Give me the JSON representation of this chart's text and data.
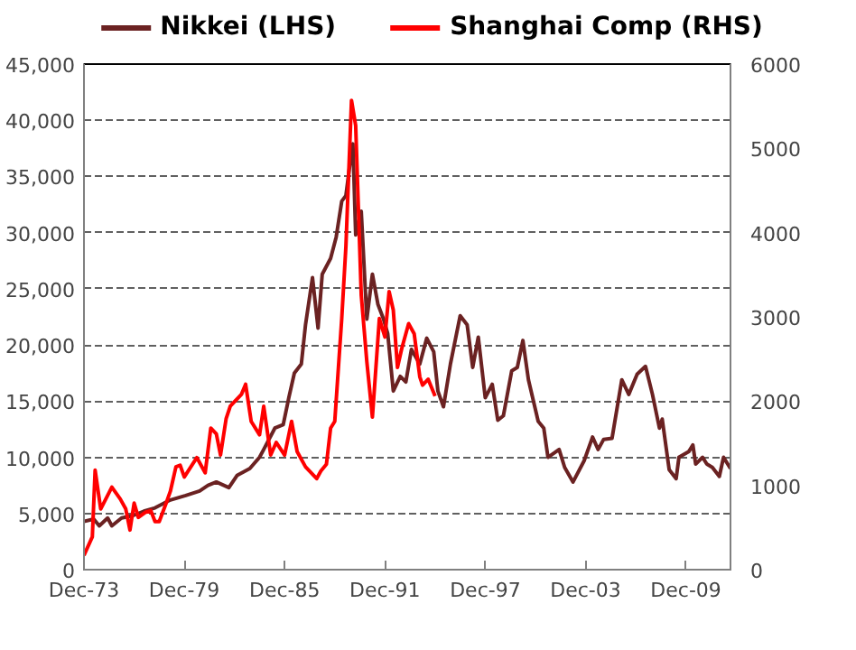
{
  "chart_data": {
    "type": "line",
    "legend": "top",
    "grid": "y",
    "line_style": "solid",
    "marker": "none",
    "xlim": [
      "1973-12",
      "2012-08"
    ],
    "xticks": [
      {
        "value": "1973-12",
        "label": "Dec-73"
      },
      {
        "value": "1979-12",
        "label": "Dec-79"
      },
      {
        "value": "1985-12",
        "label": "Dec-85"
      },
      {
        "value": "1991-12",
        "label": "Dec-91"
      },
      {
        "value": "1997-12",
        "label": "Dec-97"
      },
      {
        "value": "2003-12",
        "label": "Dec-03"
      },
      {
        "value": "2009-12",
        "label": "Dec-09"
      }
    ],
    "ylim": [
      0,
      45000
    ],
    "yticks": [
      {
        "value": 0,
        "label": "0"
      },
      {
        "value": 5000,
        "label": "5,000"
      },
      {
        "value": 10000,
        "label": "10,000"
      },
      {
        "value": 15000,
        "label": "15,000"
      },
      {
        "value": 20000,
        "label": "20,000"
      },
      {
        "value": 25000,
        "label": "25,000"
      },
      {
        "value": 30000,
        "label": "30,000"
      },
      {
        "value": 35000,
        "label": "35,000"
      },
      {
        "value": 40000,
        "label": "40,000"
      },
      {
        "value": 45000,
        "label": "45,000"
      }
    ],
    "y2lim": [
      0,
      6000
    ],
    "y2ticks": [
      0,
      1000,
      2000,
      3000,
      4000,
      5000,
      6000
    ],
    "series": [
      {
        "name": "Nikkei (LHS)",
        "color": "#6b2222",
        "x": [
          "1973-12",
          "1974-07",
          "1974-11",
          "1975-05",
          "1975-08",
          "1976-03",
          "1976-11",
          "1977-07",
          "1978-03",
          "1979-02",
          "1980-01",
          "1980-11",
          "1981-05",
          "1981-11",
          "1982-08",
          "1983-02",
          "1983-11",
          "1984-06",
          "1984-09",
          "1985-05",
          "1985-11",
          "1986-03",
          "1986-07",
          "1986-12",
          "1987-03",
          "1987-08",
          "1987-12",
          "1988-03",
          "1988-09",
          "1989-01",
          "1989-05",
          "1989-08",
          "1989-11",
          "1990-01",
          "1990-03",
          "1990-07",
          "1990-11",
          "1991-03",
          "1991-07",
          "1991-11",
          "1992-02",
          "1992-06",
          "1992-11",
          "1993-03",
          "1993-07",
          "1994-01",
          "1994-06",
          "1994-11",
          "1995-02",
          "1995-06",
          "1995-11",
          "1996-06",
          "1996-11",
          "1997-03",
          "1997-07",
          "1997-12",
          "1998-05",
          "1998-09",
          "1999-01",
          "1999-07",
          "1999-11",
          "2000-03",
          "2000-07",
          "2001-02",
          "2001-06",
          "2001-09",
          "2002-05",
          "2002-09",
          "2003-03",
          "2003-11",
          "2004-05",
          "2004-09",
          "2005-01",
          "2005-07",
          "2006-02",
          "2006-07",
          "2007-01",
          "2007-07",
          "2007-12",
          "2008-05",
          "2008-07",
          "2008-12",
          "2009-05",
          "2009-07",
          "2010-02",
          "2010-05",
          "2010-07",
          "2010-12",
          "2011-03",
          "2011-07",
          "2011-12",
          "2012-03",
          "2012-08"
        ],
        "values": [
          4300,
          4500,
          3900,
          4600,
          3900,
          4600,
          4800,
          5200,
          5500,
          6200,
          6600,
          7000,
          7500,
          7800,
          7300,
          8400,
          9000,
          10000,
          10700,
          12600,
          12900,
          15300,
          17500,
          18300,
          21800,
          26000,
          21500,
          26300,
          27700,
          29600,
          32800,
          33300,
          36200,
          37900,
          29800,
          31900,
          22300,
          26300,
          23600,
          22300,
          21000,
          15900,
          17200,
          16700,
          19600,
          18300,
          20600,
          19400,
          15900,
          14500,
          18300,
          22600,
          21800,
          18000,
          20700,
          15300,
          16500,
          13300,
          13700,
          17700,
          18000,
          20400,
          16900,
          13200,
          12600,
          10000,
          10700,
          9100,
          7800,
          9700,
          11800,
          10700,
          11600,
          11700,
          16900,
          15600,
          17400,
          18100,
          15600,
          12600,
          13400,
          8900,
          8100,
          10000,
          10500,
          11100,
          9400,
          10000,
          9400,
          9100,
          8300,
          10000,
          9000
        ]
      },
      {
        "name": "Shanghai Comp (RHS)",
        "color": "#ff0000",
        "axis": "y2",
        "x": [
          "1973-12",
          "1974-06",
          "1974-08",
          "1974-12",
          "1975-08",
          "1976-02",
          "1976-06",
          "1976-09",
          "1976-12",
          "1977-03",
          "1977-08",
          "1977-12",
          "1978-03",
          "1978-06",
          "1978-11",
          "1979-02",
          "1979-06",
          "1979-09",
          "1979-12",
          "1980-09",
          "1981-03",
          "1981-07",
          "1981-11",
          "1982-02",
          "1982-06",
          "1982-09",
          "1983-05",
          "1983-08",
          "1983-12",
          "1984-06",
          "1984-09",
          "1985-02",
          "1985-06",
          "1985-12",
          "1986-05",
          "1986-09",
          "1987-03",
          "1987-11",
          "1988-02",
          "1988-06",
          "1988-09",
          "1988-12",
          "1989-05",
          "1989-08",
          "1989-12",
          "1990-03",
          "1990-07",
          "1990-11",
          "1991-03",
          "1991-08",
          "1991-12",
          "1992-03",
          "1992-06",
          "1992-09",
          "1992-12",
          "1993-05",
          "1993-09",
          "1994-01",
          "1994-03",
          "1994-07",
          "1994-12"
        ],
        "values": [
          170,
          390,
          1180,
          720,
          980,
          840,
          720,
          470,
          790,
          620,
          680,
          700,
          570,
          570,
          790,
          930,
          1220,
          1240,
          1100,
          1330,
          1150,
          1680,
          1610,
          1360,
          1790,
          1940,
          2080,
          2200,
          1760,
          1600,
          1940,
          1360,
          1510,
          1360,
          1760,
          1400,
          1220,
          1080,
          1170,
          1250,
          1680,
          1760,
          2980,
          3840,
          5570,
          5270,
          3260,
          2470,
          1810,
          2980,
          2760,
          3300,
          3080,
          2400,
          2620,
          2920,
          2800,
          2290,
          2190,
          2260,
          2060
        ]
      }
    ]
  }
}
